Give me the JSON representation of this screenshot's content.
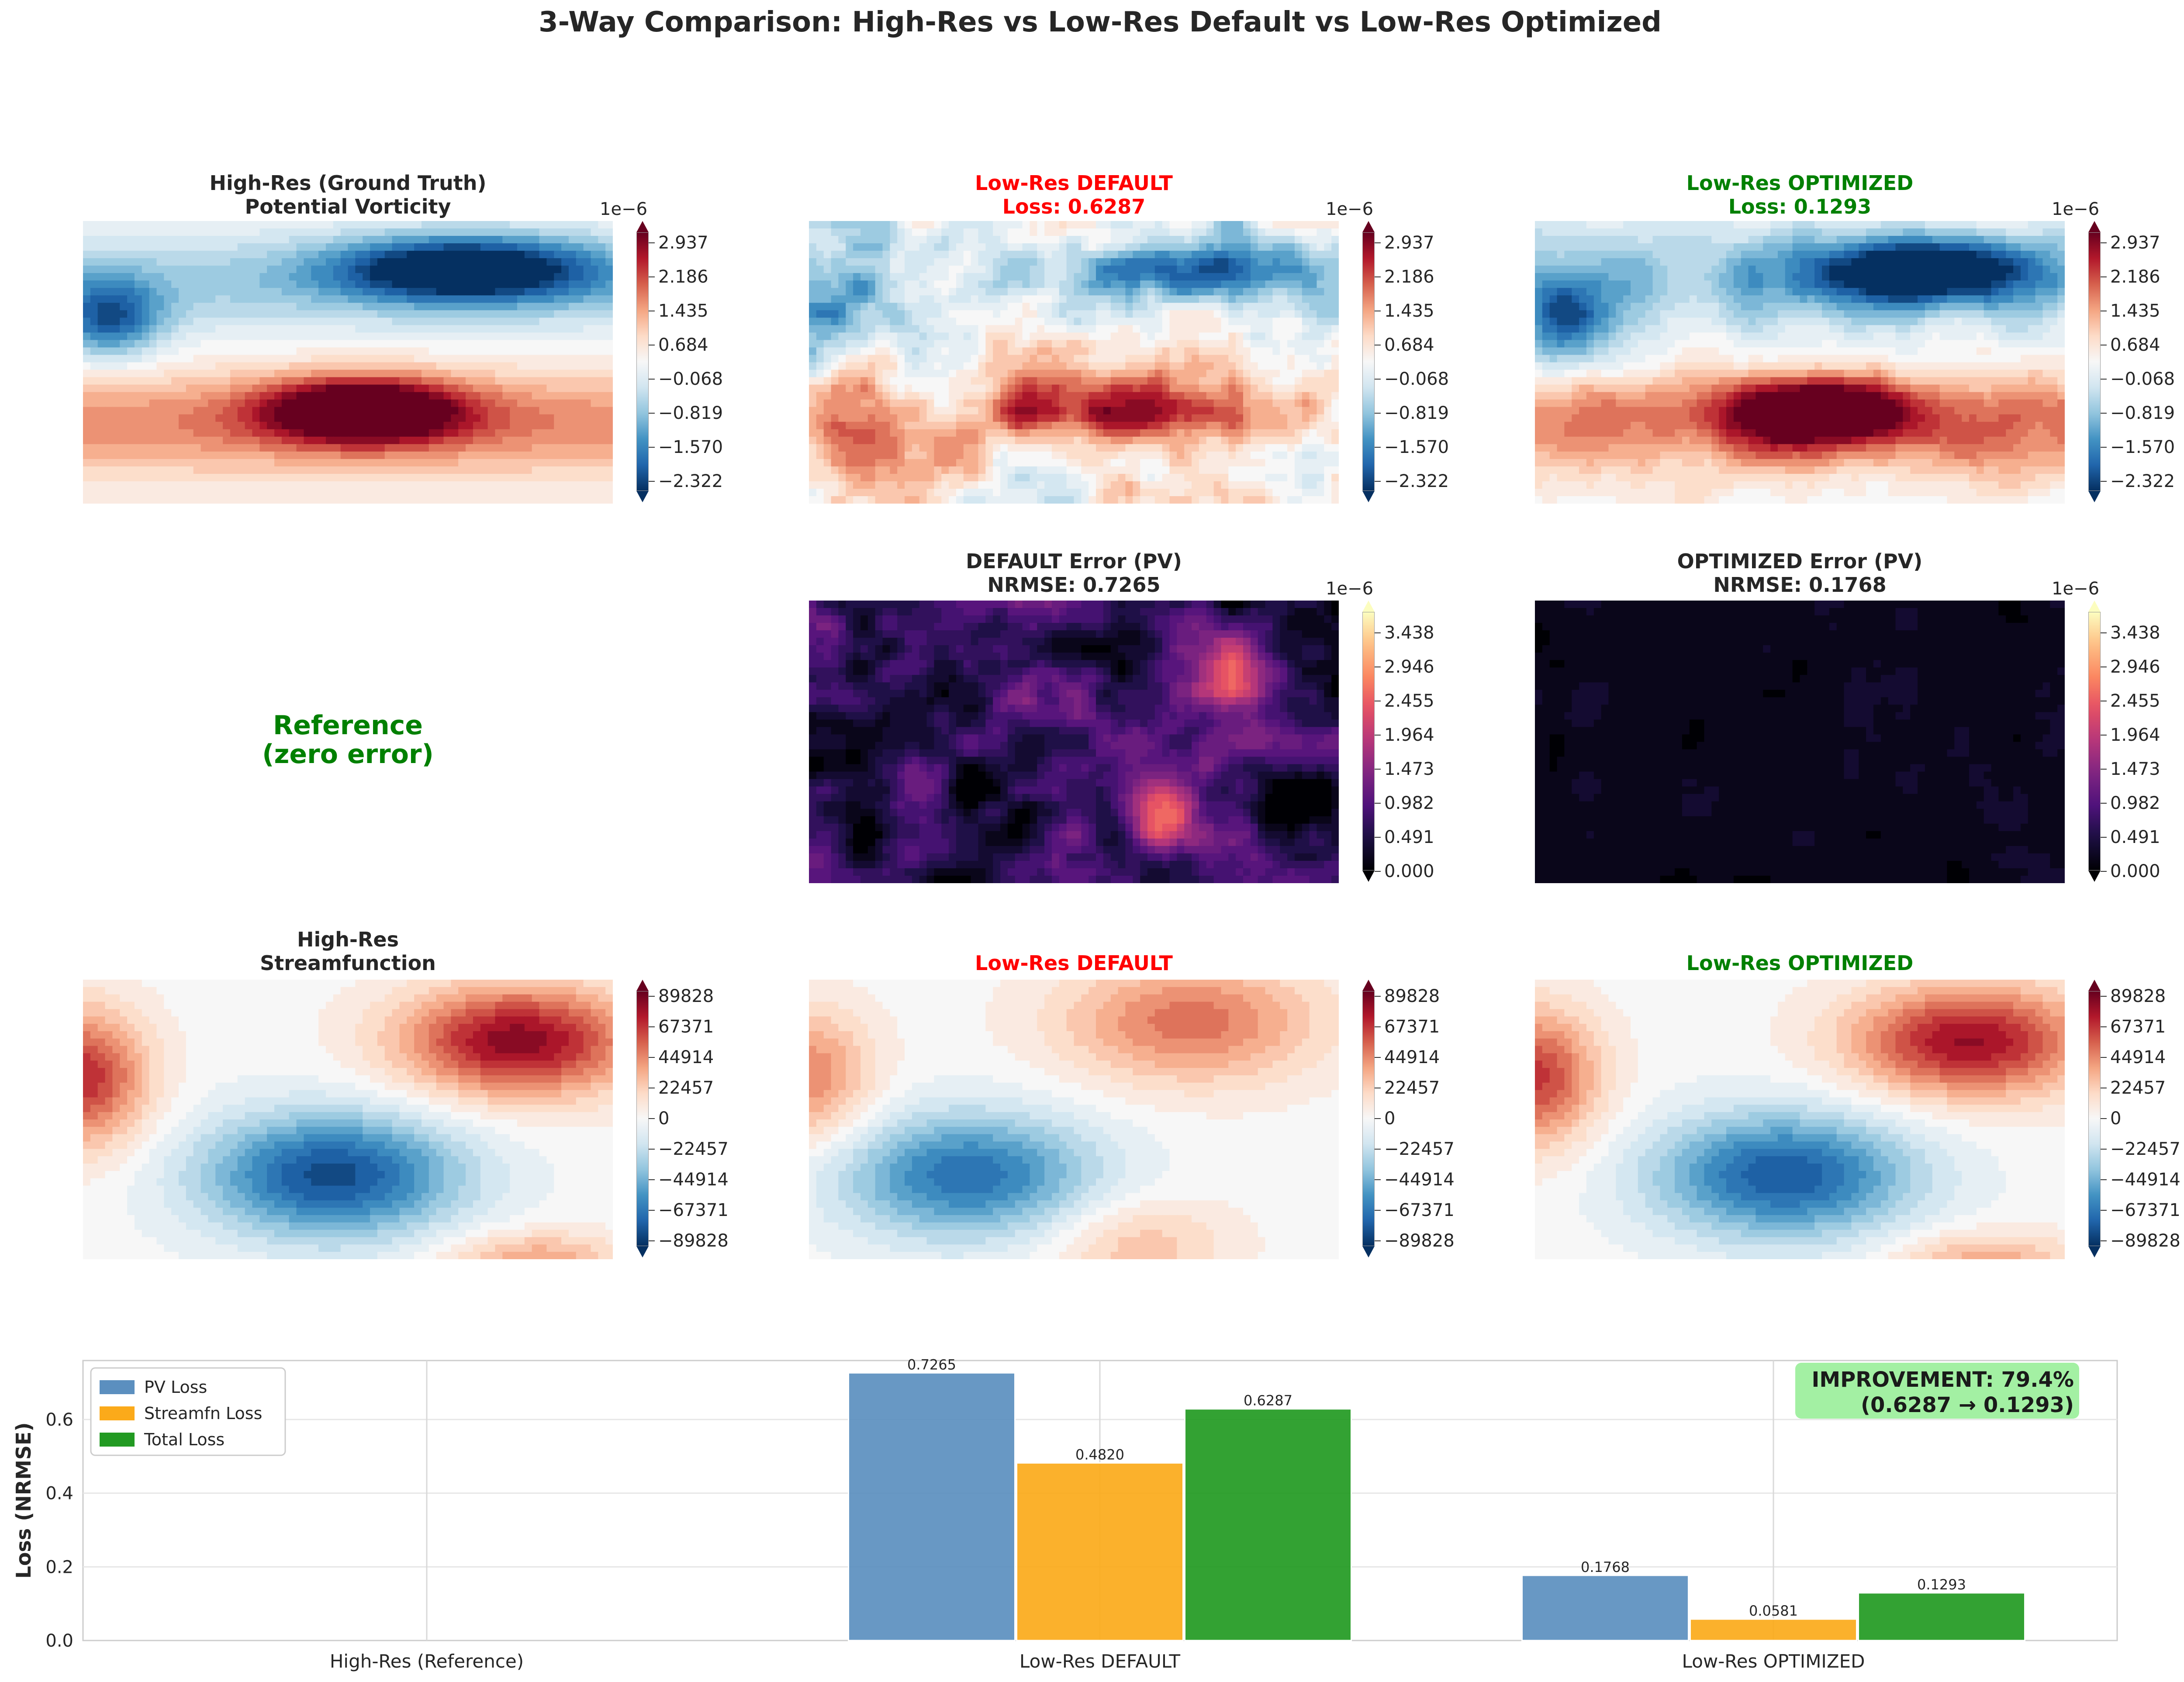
{
  "figure": {
    "title": "3-Way Comparison: High-Res vs Low-Res Default vs Low-Res Optimized"
  },
  "colors": {
    "red": "#ff0000",
    "green": "#008000",
    "pv": "#5b8fbf",
    "streamfn": "#fbaa1a",
    "total": "#229a22",
    "improvement_bg": "#a3f0a3"
  },
  "panels": {
    "pv_highres": {
      "line1": "High-Res (Ground Truth)",
      "line2": "Potential Vorticity",
      "colormap": "RdBu_r"
    },
    "pv_default": {
      "line1": "Low-Res DEFAULT",
      "line2": "Loss: 0.6287",
      "colormap": "RdBu_r"
    },
    "pv_optimized": {
      "line1": "Low-Res OPTIMIZED",
      "line2": "Loss: 0.1293",
      "colormap": "RdBu_r"
    },
    "reference_note": {
      "line1": "Reference",
      "line2": "(zero error)"
    },
    "err_default": {
      "line1": "DEFAULT Error (PV)",
      "line2": "NRMSE: 0.7265",
      "colormap": "magma"
    },
    "err_optimized": {
      "line1": "OPTIMIZED Error (PV)",
      "line2": "NRMSE: 0.1768",
      "colormap": "magma"
    },
    "psi_highres": {
      "line1": "High-Res",
      "line2": "Streamfunction",
      "colormap": "RdBu_r"
    },
    "psi_default": {
      "line1": "Low-Res DEFAULT",
      "colormap": "RdBu_r"
    },
    "psi_optimized": {
      "line1": "Low-Res OPTIMIZED",
      "colormap": "RdBu_r"
    }
  },
  "colorbars": {
    "pv": {
      "exponent": "1e−6",
      "ticks": [
        "2.937",
        "2.186",
        "1.435",
        "0.684",
        "−0.068",
        "−0.819",
        "−1.570",
        "−2.322"
      ]
    },
    "err": {
      "exponent": "1e−6",
      "ticks": [
        "3.438",
        "2.946",
        "2.455",
        "1.964",
        "1.473",
        "0.982",
        "0.491",
        "0.000"
      ]
    },
    "psi": {
      "ticks": [
        "89828",
        "67371",
        "44914",
        "22457",
        "0",
        "−22457",
        "−44914",
        "−67371",
        "−89828"
      ]
    }
  },
  "chart_data": {
    "type": "bar",
    "categories": [
      "High-Res (Reference)",
      "Low-Res DEFAULT",
      "Low-Res OPTIMIZED"
    ],
    "series": [
      {
        "name": "PV Loss",
        "values": [
          null,
          0.7265,
          0.1768
        ],
        "labels": [
          "",
          "0.7265",
          "0.1768"
        ],
        "color": "#5b8fbf"
      },
      {
        "name": "Streamfn Loss",
        "values": [
          null,
          0.482,
          0.0581
        ],
        "labels": [
          "",
          "0.4820",
          "0.0581"
        ],
        "color": "#fbaa1a"
      },
      {
        "name": "Total Loss",
        "values": [
          null,
          0.6287,
          0.1293
        ],
        "labels": [
          "",
          "0.6287",
          "0.1293"
        ],
        "color": "#229a22"
      }
    ],
    "ylabel": "Loss (NRMSE)",
    "ylim": [
      0,
      0.76
    ],
    "yticks": [
      "0.0",
      "0.2",
      "0.4",
      "0.6"
    ],
    "grid": true,
    "legend": "top-left",
    "annotation": {
      "line1": "IMPROVEMENT: 79.4%",
      "line2": "(0.6287 → 0.1293)"
    }
  }
}
